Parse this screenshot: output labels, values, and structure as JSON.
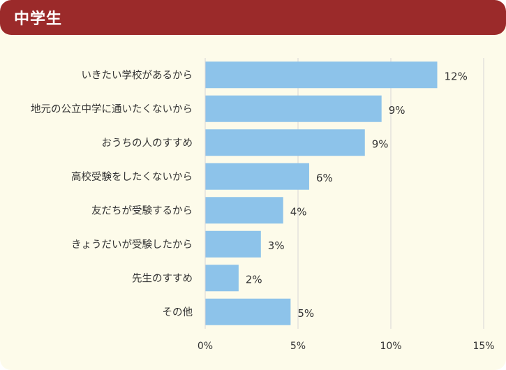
{
  "header": {
    "title": "中学生"
  },
  "colors": {
    "header_bg": "#9b2a2a",
    "panel_bg": "#fdfbea",
    "bar": "#8dc3ea",
    "grid": "#d6d6d6"
  },
  "chart_data": {
    "type": "bar",
    "orientation": "horizontal",
    "categories": [
      "いきたい学校があるから",
      "地元の公立中学に通いたくないから",
      "おうちの人のすすめ",
      "高校受験をしたくないから",
      "友だちが受験するから",
      "きょうだいが受験したから",
      "先生のすすめ",
      "その他"
    ],
    "values": [
      12.5,
      9.5,
      8.6,
      5.6,
      4.2,
      3.0,
      1.8,
      4.6
    ],
    "value_labels": [
      "12%",
      "9%",
      "9%",
      "6%",
      "4%",
      "3%",
      "2%",
      "5%"
    ],
    "xlim": [
      0,
      15
    ],
    "xticks": [
      0,
      5,
      10,
      15
    ],
    "xtick_labels": [
      "0%",
      "5%",
      "10%",
      "15%"
    ],
    "grid": true,
    "legend": false
  }
}
